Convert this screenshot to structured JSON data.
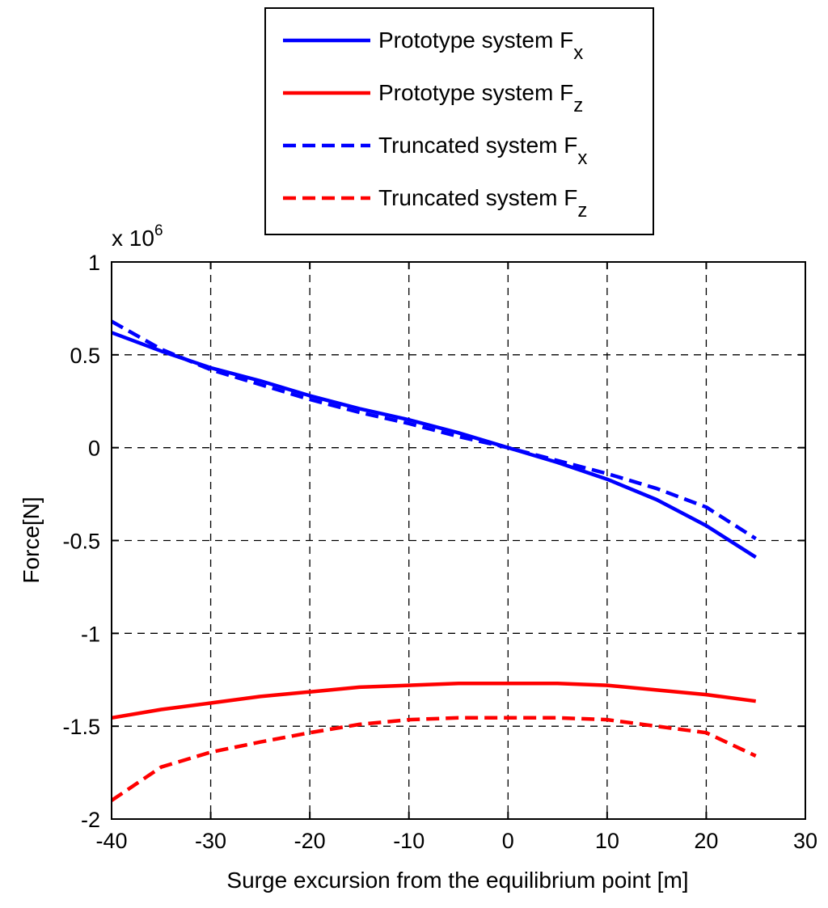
{
  "chart_data": {
    "type": "line",
    "xlabel": "Surge excursion from the equilibrium point [m]",
    "ylabel": "Force[N]",
    "y_exponent_label": "x 10",
    "y_exponent_power": "6",
    "y_scale": 1000000,
    "xlim": [
      -40,
      30
    ],
    "ylim": [
      -2,
      1
    ],
    "x_ticks": [
      -40,
      -30,
      -20,
      -10,
      0,
      10,
      20,
      30
    ],
    "x_tick_labels": [
      "-40",
      "-30",
      "-20",
      "-10",
      "0",
      "10",
      "20",
      "30"
    ],
    "y_ticks": [
      1,
      0.5,
      0,
      -0.5,
      -1,
      -1.5,
      -2
    ],
    "y_tick_labels": [
      "1",
      "0.5",
      "0",
      "-0.5",
      "-1",
      "-1.5",
      "-2"
    ],
    "grid": true,
    "legend_placement": "top-center, outside plot",
    "series": [
      {
        "legend_base": "Prototype system F",
        "legend_sub": "x",
        "color": "#0000ff",
        "style": "solid",
        "x": [
          -40,
          -35,
          -30,
          -25,
          -20,
          -15,
          -10,
          -5,
          0,
          5,
          10,
          15,
          20,
          25
        ],
        "y": [
          0.62,
          0.52,
          0.43,
          0.36,
          0.28,
          0.21,
          0.15,
          0.08,
          0,
          -0.08,
          -0.17,
          -0.28,
          -0.42,
          -0.59
        ]
      },
      {
        "legend_base": "Prototype system F",
        "legend_sub": "z",
        "color": "#ff0000",
        "style": "solid",
        "x": [
          -40,
          -35,
          -30,
          -25,
          -20,
          -15,
          -10,
          -5,
          0,
          5,
          10,
          15,
          20,
          25
        ],
        "y": [
          -1.455,
          -1.41,
          -1.375,
          -1.34,
          -1.315,
          -1.29,
          -1.28,
          -1.27,
          -1.27,
          -1.27,
          -1.28,
          -1.305,
          -1.33,
          -1.365
        ]
      },
      {
        "legend_base": "Truncated system F",
        "legend_sub": "x",
        "color": "#0000ff",
        "style": "dashed",
        "x": [
          -40,
          -35,
          -30,
          -25,
          -20,
          -15,
          -10,
          -5,
          0,
          5,
          10,
          15,
          20,
          25
        ],
        "y": [
          0.68,
          0.53,
          0.42,
          0.34,
          0.26,
          0.19,
          0.13,
          0.06,
          0,
          -0.07,
          -0.14,
          -0.22,
          -0.32,
          -0.49
        ]
      },
      {
        "legend_base": "Truncated system F",
        "legend_sub": "z",
        "color": "#ff0000",
        "style": "dashed",
        "x": [
          -40,
          -35,
          -30,
          -25,
          -20,
          -15,
          -10,
          -5,
          0,
          5,
          10,
          15,
          20,
          25
        ],
        "y": [
          -1.9,
          -1.72,
          -1.64,
          -1.585,
          -1.535,
          -1.49,
          -1.465,
          -1.455,
          -1.455,
          -1.455,
          -1.465,
          -1.5,
          -1.535,
          -1.66
        ]
      }
    ]
  }
}
